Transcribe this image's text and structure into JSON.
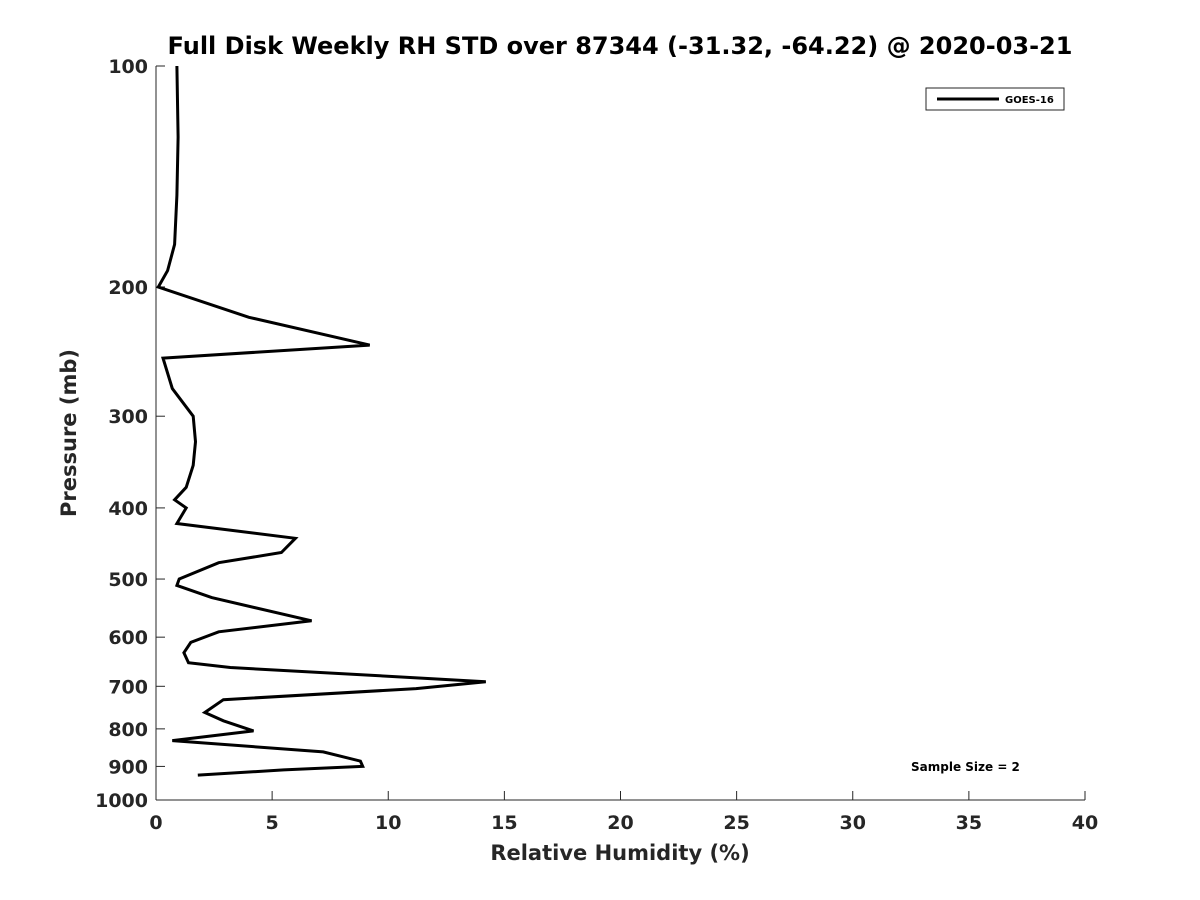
{
  "chart_data": {
    "type": "line",
    "title": "Full Disk Weekly RH STD over 87344 (-31.32, -64.22) @ 2020-03-21",
    "xlabel": "Relative Humidity (%)",
    "ylabel": "Pressure (mb)",
    "xlim": [
      0,
      40
    ],
    "ylim": [
      100,
      1000
    ],
    "y_scale": "log",
    "y_reversed": true,
    "x_ticks": [
      "0",
      "5",
      "10",
      "15",
      "20",
      "25",
      "30",
      "35",
      "40"
    ],
    "y_ticks": [
      "100",
      "200",
      "300",
      "400",
      "500",
      "600",
      "700",
      "800",
      "900",
      "1000"
    ],
    "grid": false,
    "legend_position": "top-right",
    "annotation": "Sample Size = 2",
    "series": [
      {
        "name": "GOES-16",
        "color": "#000000",
        "points": [
          [
            0.9,
            100
          ],
          [
            0.95,
            125
          ],
          [
            0.9,
            150
          ],
          [
            0.8,
            175
          ],
          [
            0.5,
            190
          ],
          [
            0.1,
            200
          ],
          [
            4.0,
            220
          ],
          [
            9.2,
            240
          ],
          [
            0.3,
            250
          ],
          [
            0.7,
            275
          ],
          [
            1.6,
            300
          ],
          [
            1.7,
            325
          ],
          [
            1.6,
            350
          ],
          [
            1.3,
            375
          ],
          [
            0.8,
            390
          ],
          [
            1.3,
            400
          ],
          [
            0.9,
            420
          ],
          [
            6.0,
            440
          ],
          [
            5.4,
            460
          ],
          [
            2.7,
            475
          ],
          [
            1.0,
            500
          ],
          [
            0.9,
            510
          ],
          [
            2.4,
            530
          ],
          [
            6.7,
            570
          ],
          [
            2.7,
            590
          ],
          [
            1.5,
            610
          ],
          [
            1.2,
            630
          ],
          [
            1.4,
            650
          ],
          [
            3.2,
            660
          ],
          [
            14.2,
            690
          ],
          [
            11.2,
            705
          ],
          [
            2.9,
            730
          ],
          [
            2.1,
            760
          ],
          [
            2.9,
            780
          ],
          [
            4.2,
            805
          ],
          [
            0.7,
            830
          ],
          [
            7.2,
            860
          ],
          [
            8.8,
            885
          ],
          [
            8.9,
            900
          ],
          [
            5.5,
            910
          ],
          [
            1.8,
            925
          ]
        ]
      }
    ]
  }
}
